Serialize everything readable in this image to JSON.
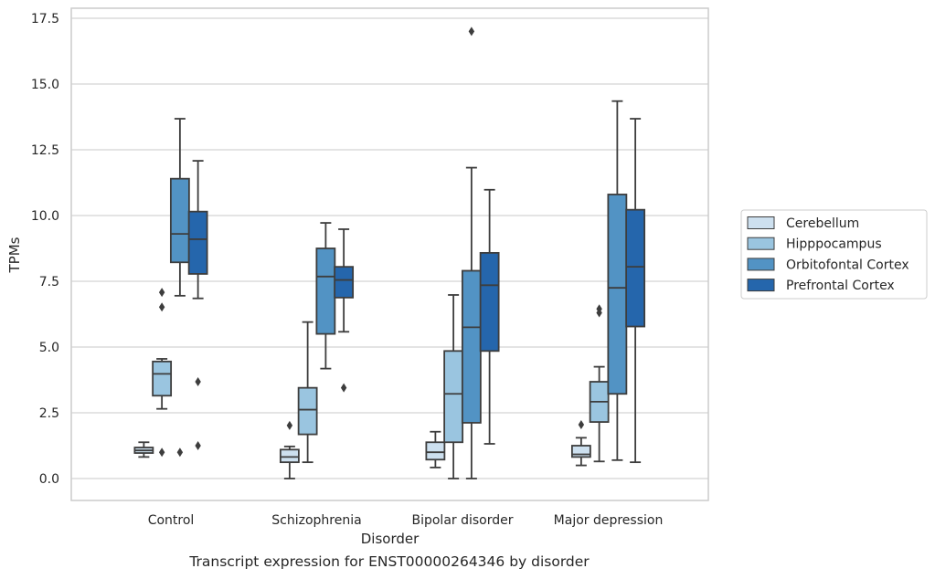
{
  "caption": "Transcript expression for ENST00000264346 by disorder",
  "chart_data": {
    "type": "box",
    "title": "",
    "xlabel": "Disorder",
    "ylabel": "TPMs",
    "categories": [
      "Control",
      "Schizophrenia",
      "Bipolar disorder",
      "Major depression"
    ],
    "ylim": [
      -0.8,
      17.8
    ],
    "yticks": [
      "0.0",
      "2.5",
      "5.0",
      "7.5",
      "10.0",
      "12.5",
      "15.0",
      "17.5"
    ],
    "grid": "horizontal",
    "legend_position": "right",
    "series": [
      {
        "name": "Cerebellum",
        "color": "#cde0ef",
        "boxes": [
          {
            "q1": 0.97,
            "median": 1.07,
            "q3": 1.18,
            "whisker_low": 0.82,
            "whisker_high": 1.38,
            "outliers": []
          },
          {
            "q1": 0.62,
            "median": 0.82,
            "q3": 1.1,
            "whisker_low": 0.0,
            "whisker_high": 1.22,
            "outliers": [
              2.02
            ]
          },
          {
            "q1": 0.72,
            "median": 1.0,
            "q3": 1.38,
            "whisker_low": 0.42,
            "whisker_high": 1.78,
            "outliers": []
          },
          {
            "q1": 0.82,
            "median": 0.92,
            "q3": 1.25,
            "whisker_low": 0.5,
            "whisker_high": 1.55,
            "outliers": [
              2.05
            ]
          }
        ]
      },
      {
        "name": "Hipppocampus",
        "color": "#9ac5e0",
        "boxes": [
          {
            "q1": 3.15,
            "median": 3.98,
            "q3": 4.45,
            "whisker_low": 2.65,
            "whisker_high": 4.55,
            "outliers": [
              7.08,
              6.52,
              1.0
            ]
          },
          {
            "q1": 1.68,
            "median": 2.62,
            "q3": 3.45,
            "whisker_low": 0.62,
            "whisker_high": 5.95,
            "outliers": []
          },
          {
            "q1": 1.38,
            "median": 3.22,
            "q3": 4.85,
            "whisker_low": 0.0,
            "whisker_high": 6.98,
            "outliers": []
          },
          {
            "q1": 2.15,
            "median": 2.92,
            "q3": 3.68,
            "whisker_low": 0.65,
            "whisker_high": 4.25,
            "outliers": [
              6.45,
              6.3
            ]
          }
        ]
      },
      {
        "name": "Orbitofontal Cortex",
        "color": "#5293c4",
        "boxes": [
          {
            "q1": 8.22,
            "median": 9.3,
            "q3": 11.4,
            "whisker_low": 6.95,
            "whisker_high": 13.68,
            "outliers": [
              1.0
            ]
          },
          {
            "q1": 5.5,
            "median": 7.68,
            "q3": 8.75,
            "whisker_low": 4.18,
            "whisker_high": 9.72,
            "outliers": []
          },
          {
            "q1": 2.12,
            "median": 5.75,
            "q3": 7.9,
            "whisker_low": 0.0,
            "whisker_high": 11.82,
            "outliers": [
              17.0
            ]
          },
          {
            "q1": 3.22,
            "median": 7.25,
            "q3": 10.8,
            "whisker_low": 0.7,
            "whisker_high": 14.35,
            "outliers": []
          }
        ]
      },
      {
        "name": "Prefrontal Cortex",
        "color": "#2566ac",
        "boxes": [
          {
            "q1": 7.78,
            "median": 9.1,
            "q3": 10.15,
            "whisker_low": 6.85,
            "whisker_high": 12.08,
            "outliers": [
              3.68,
              1.25
            ]
          },
          {
            "q1": 6.88,
            "median": 7.55,
            "q3": 8.05,
            "whisker_low": 5.58,
            "whisker_high": 9.48,
            "outliers": [
              3.45
            ]
          },
          {
            "q1": 4.85,
            "median": 7.35,
            "q3": 8.58,
            "whisker_low": 1.32,
            "whisker_high": 10.98,
            "outliers": []
          },
          {
            "q1": 5.78,
            "median": 8.05,
            "q3": 10.22,
            "whisker_low": 0.62,
            "whisker_high": 13.68,
            "outliers": []
          }
        ]
      }
    ]
  }
}
